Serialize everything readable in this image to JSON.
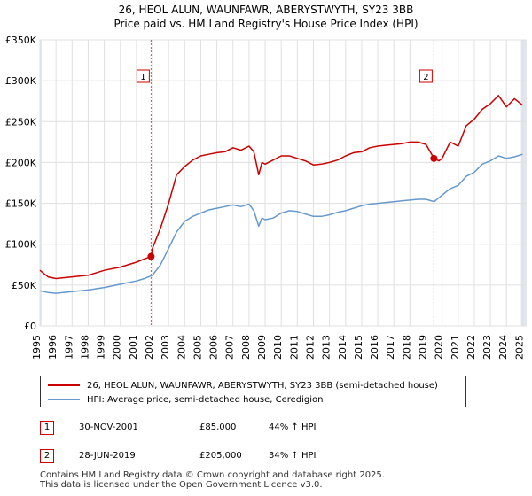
{
  "title_line1": "26, HEOL ALUN, WAUNFAWR, ABERYSTWYTH, SY23 3BB",
  "title_line2": "Price paid vs. HM Land Registry's House Price Index (HPI)",
  "colors": {
    "property": "#cc0000",
    "hpi": "#6699cc",
    "shade": "#dde6f4",
    "marker": "#cc0000"
  },
  "chart_data": {
    "type": "line",
    "title": "26, HEOL ALUN, WAUNFAWR, ABERYSTWYTH, SY23 3BB",
    "subtitle": "Price paid vs. HM Land Registry's House Price Index (HPI)",
    "xlabel": "",
    "ylabel": "",
    "xlim": [
      1995,
      2025.2
    ],
    "ylim": [
      0,
      350000
    ],
    "y_ticks": [
      0,
      50000,
      100000,
      150000,
      200000,
      250000,
      300000,
      350000
    ],
    "y_tick_labels": [
      "£0",
      "£50K",
      "£100K",
      "£150K",
      "£200K",
      "£250K",
      "£300K",
      "£350K"
    ],
    "x_ticks": [
      1995,
      1996,
      1997,
      1998,
      1999,
      2000,
      2001,
      2002,
      2003,
      2004,
      2005,
      2006,
      2007,
      2008,
      2009,
      2010,
      2011,
      2012,
      2013,
      2014,
      2015,
      2016,
      2017,
      2018,
      2019,
      2020,
      2021,
      2022,
      2023,
      2024,
      2025
    ],
    "x_tick_labels": [
      "1995",
      "1996",
      "1997",
      "1998",
      "1999",
      "2000",
      "2001",
      "2002",
      "2003",
      "2004",
      "2005",
      "2006",
      "2007",
      "2008",
      "2009",
      "2010",
      "2011",
      "2012",
      "2013",
      "2014",
      "2015",
      "2016",
      "2017",
      "2018",
      "2019",
      "2020",
      "2021",
      "2022",
      "2023",
      "2024",
      "2025"
    ],
    "grid": true,
    "shaded_ranges": [
      [
        1995,
        1995.1
      ],
      [
        2024.9,
        2025.2
      ]
    ],
    "series": [
      {
        "name": "26, HEOL ALUN, WAUNFAWR, ABERYSTWYTH, SY23 3BB (semi-detached house)",
        "x": [
          1995,
          1995.5,
          1996,
          1997,
          1998,
          1999,
          2000,
          2001,
          2001.5,
          2001.91,
          2002,
          2002.5,
          2003,
          2003.5,
          2004,
          2004.5,
          2005,
          2005.5,
          2006,
          2006.5,
          2007,
          2007.5,
          2008,
          2008.3,
          2008.6,
          2008.8,
          2009,
          2009.5,
          2010,
          2010.5,
          2011,
          2011.5,
          2012,
          2012.5,
          2013,
          2013.5,
          2014,
          2014.5,
          2015,
          2015.5,
          2016,
          2016.5,
          2017,
          2017.5,
          2018,
          2018.5,
          2019,
          2019.49,
          2019.8,
          2020,
          2020.5,
          2021,
          2021.5,
          2022,
          2022.5,
          2023,
          2023.5,
          2024,
          2024.5,
          2025
        ],
        "y": [
          68000,
          60000,
          58000,
          60000,
          62000,
          68000,
          72000,
          78000,
          82000,
          85000,
          95000,
          120000,
          150000,
          185000,
          195000,
          203000,
          208000,
          210000,
          212000,
          213000,
          218000,
          215000,
          220000,
          213000,
          185000,
          200000,
          198000,
          203000,
          208000,
          208000,
          205000,
          202000,
          197000,
          198000,
          200000,
          203000,
          208000,
          212000,
          213000,
          218000,
          220000,
          221000,
          222000,
          223000,
          225000,
          225000,
          222000,
          205000,
          202000,
          205000,
          225000,
          220000,
          245000,
          253000,
          265000,
          272000,
          282000,
          268000,
          278000,
          270000
        ]
      },
      {
        "name": "HPI: Average price, semi-detached house, Ceredigion",
        "x": [
          1995,
          1995.5,
          1996,
          1997,
          1998,
          1999,
          2000,
          2001,
          2001.5,
          2002,
          2002.5,
          2003,
          2003.5,
          2004,
          2004.5,
          2005,
          2005.5,
          2006,
          2006.5,
          2007,
          2007.5,
          2008,
          2008.3,
          2008.6,
          2008.8,
          2009,
          2009.5,
          2010,
          2010.5,
          2011,
          2011.5,
          2012,
          2012.5,
          2013,
          2013.5,
          2014,
          2014.5,
          2015,
          2015.5,
          2016,
          2016.5,
          2017,
          2017.5,
          2018,
          2018.5,
          2019,
          2019.5,
          2020,
          2020.5,
          2021,
          2021.5,
          2022,
          2022.5,
          2023,
          2023.5,
          2024,
          2024.5,
          2025
        ],
        "y": [
          43000,
          41000,
          40000,
          42000,
          44000,
          47000,
          51000,
          55000,
          58000,
          62000,
          75000,
          95000,
          115000,
          128000,
          134000,
          138000,
          142000,
          144000,
          146000,
          148000,
          146000,
          149000,
          141000,
          122000,
          132000,
          130000,
          132000,
          138000,
          141000,
          140000,
          137000,
          134000,
          134000,
          136000,
          139000,
          141000,
          144000,
          147000,
          149000,
          150000,
          151000,
          152000,
          153000,
          154000,
          155000,
          155000,
          152000,
          160000,
          168000,
          172000,
          183000,
          188000,
          198000,
          202000,
          208000,
          205000,
          207000,
          210000
        ]
      }
    ],
    "transactions": [
      {
        "label": "1",
        "date": "30-NOV-2001",
        "x": 2001.91,
        "price": 85000,
        "price_text": "£85,000",
        "hpi_text": "44% ↑ HPI"
      },
      {
        "label": "2",
        "date": "28-JUN-2019",
        "x": 2019.49,
        "price": 205000,
        "price_text": "£205,000",
        "hpi_text": "34% ↑ HPI"
      }
    ]
  },
  "legend": {
    "property_label": "26, HEOL ALUN, WAUNFAWR, ABERYSTWYTH, SY23 3BB (semi-detached house)",
    "hpi_label": "HPI: Average price, semi-detached house, Ceredigion"
  },
  "footer": {
    "line1": "Contains HM Land Registry data © Crown copyright and database right 2025.",
    "line2": "This data is licensed under the Open Government Licence v3.0."
  }
}
